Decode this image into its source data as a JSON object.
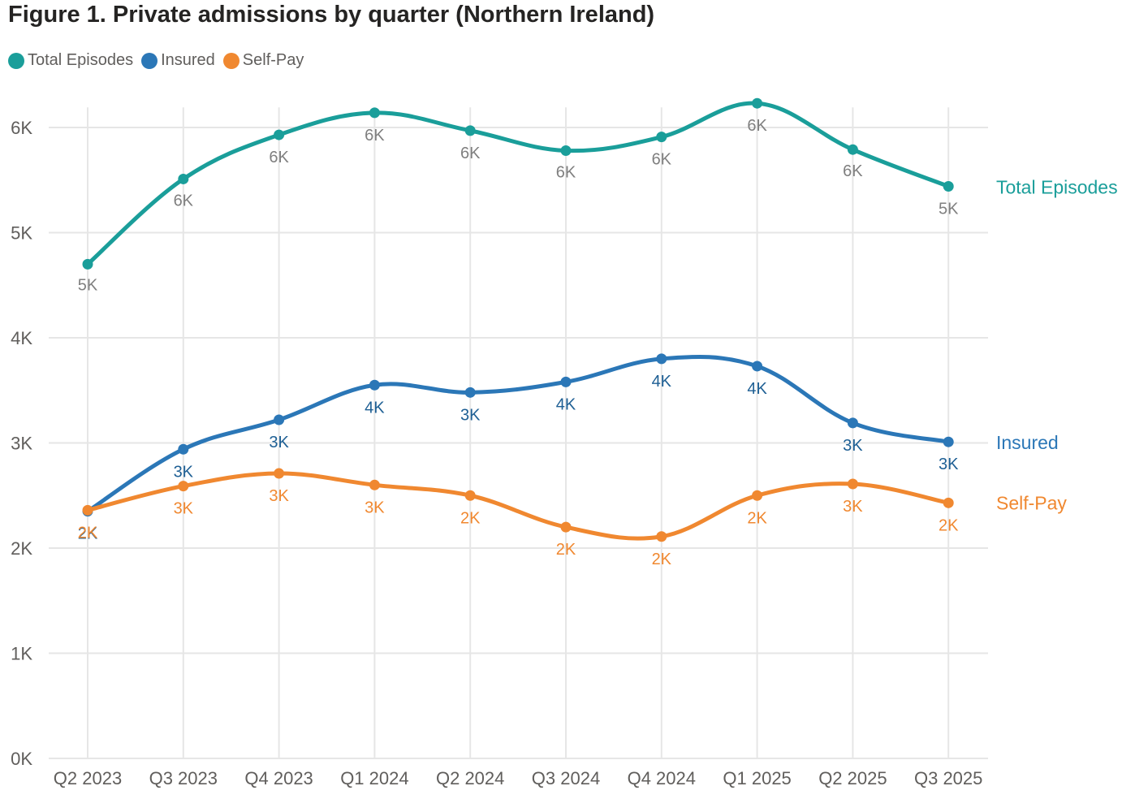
{
  "chart_data": {
    "type": "line",
    "title": "Figure 1. Private admissions by quarter (Northern Ireland)",
    "xlabel": "",
    "ylabel": "",
    "categories": [
      "Q2 2023",
      "Q3 2023",
      "Q4 2023",
      "Q1 2024",
      "Q2 2024",
      "Q3 2024",
      "Q4 2024",
      "Q1 2025",
      "Q2 2025",
      "Q3 2025"
    ],
    "ylim": [
      0,
      6500
    ],
    "yticks": [
      0,
      1000,
      2000,
      3000,
      4000,
      5000,
      6000
    ],
    "ytick_labels": [
      "0K",
      "1K",
      "2K",
      "3K",
      "4K",
      "5K",
      "6K"
    ],
    "grid": true,
    "legend_position": "top-left",
    "series": [
      {
        "name": "Total Episodes",
        "color": "#1a9e9a",
        "values": [
          4700,
          5510,
          5930,
          6140,
          5970,
          5780,
          5910,
          6230,
          5790,
          5440
        ],
        "labels": [
          "5K",
          "6K",
          "6K",
          "6K",
          "6K",
          "6K",
          "6K",
          "6K",
          "6K",
          "5K"
        ],
        "label_color": "#7f7f7f"
      },
      {
        "name": "Insured",
        "color": "#2b77b7",
        "values": [
          2350,
          2940,
          3220,
          3550,
          3480,
          3580,
          3800,
          3730,
          3190,
          3010
        ],
        "labels": [
          "2K",
          "3K",
          "3K",
          "4K",
          "3K",
          "4K",
          "4K",
          "4K",
          "3K",
          "3K"
        ],
        "label_color": "#1e5f94"
      },
      {
        "name": "Self-Pay",
        "color": "#f08830",
        "values": [
          2360,
          2590,
          2710,
          2600,
          2500,
          2200,
          2110,
          2500,
          2610,
          2430
        ],
        "labels": [
          "2K",
          "3K",
          "3K",
          "3K",
          "2K",
          "2K",
          "2K",
          "2K",
          "3K",
          "2K"
        ],
        "label_color": "#f08830"
      }
    ]
  }
}
